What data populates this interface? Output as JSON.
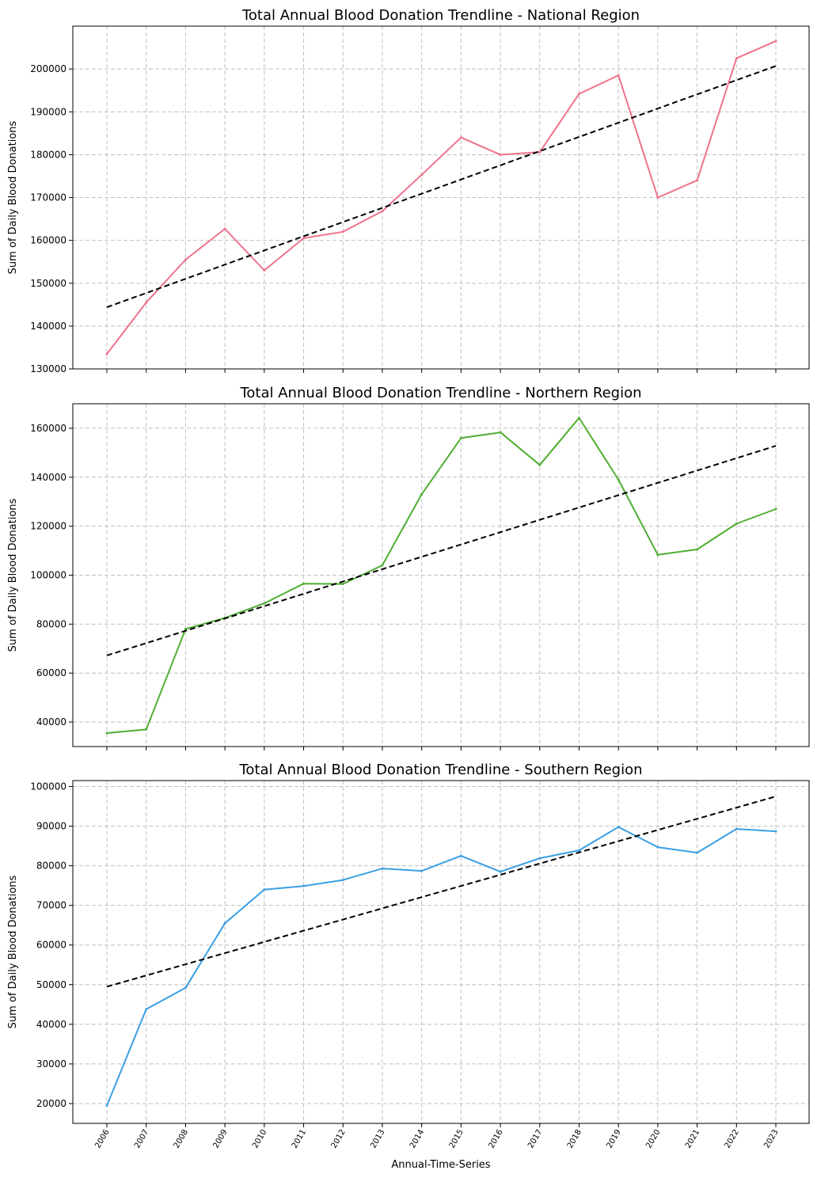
{
  "chart_data": [
    {
      "type": "line",
      "title": "Total Annual Blood Donation Trendline - National Region",
      "ylabel": "Sum of Daily Blood Donations",
      "xlabel": "",
      "x": [
        "2006",
        "2007",
        "2008",
        "2009",
        "2010",
        "2011",
        "2012",
        "2013",
        "2014",
        "2015",
        "2016",
        "2017",
        "2018",
        "2019",
        "2020",
        "2021",
        "2022",
        "2023"
      ],
      "series": [
        {
          "values": [
            133500,
            145500,
            155500,
            162700,
            153000,
            160500,
            162000,
            166800,
            175300,
            184000,
            180000,
            180600,
            194200,
            198500,
            170000,
            174000,
            202500,
            206500
          ],
          "color": "#f0728a"
        }
      ],
      "trendline": {
        "start": 144400,
        "end": 200700,
        "style": "dashed",
        "color": "#000000"
      },
      "ylim": [
        130000,
        210000
      ],
      "yticks": [
        130000,
        140000,
        150000,
        160000,
        170000,
        180000,
        190000,
        200000
      ],
      "grid": true
    },
    {
      "type": "line",
      "title": "Total Annual Blood Donation Trendline - Northern Region",
      "ylabel": "Sum of Daily Blood Donations",
      "xlabel": "",
      "x": [
        "2006",
        "2007",
        "2008",
        "2009",
        "2010",
        "2011",
        "2012",
        "2013",
        "2014",
        "2015",
        "2016",
        "2017",
        "2018",
        "2019",
        "2020",
        "2021",
        "2022",
        "2023"
      ],
      "series": [
        {
          "values": [
            35500,
            37000,
            78000,
            82500,
            88500,
            96500,
            96400,
            104000,
            133000,
            156000,
            158300,
            145000,
            164200,
            139000,
            108300,
            110500,
            121000,
            127000
          ],
          "color": "#4fae32"
        }
      ],
      "trendline": {
        "start": 67200,
        "end": 152800,
        "style": "dashed",
        "color": "#000000"
      },
      "ylim": [
        30000,
        170000
      ],
      "yticks": [
        40000,
        60000,
        80000,
        100000,
        120000,
        140000,
        160000
      ],
      "grid": true
    },
    {
      "type": "line",
      "title": "Total Annual Blood Donation Trendline - Southern Region",
      "ylabel": "Sum of Daily Blood Donations",
      "xlabel": "Annual-Time-Series",
      "x": [
        "2006",
        "2007",
        "2008",
        "2009",
        "2010",
        "2011",
        "2012",
        "2013",
        "2014",
        "2015",
        "2016",
        "2017",
        "2018",
        "2019",
        "2020",
        "2021",
        "2022",
        "2023"
      ],
      "series": [
        {
          "values": [
            19500,
            43800,
            49200,
            65500,
            74000,
            74900,
            76400,
            79300,
            78700,
            82500,
            78500,
            81900,
            83900,
            89800,
            84700,
            83300,
            89300,
            88700
          ],
          "color": "#3a9fe2"
        }
      ],
      "trendline": {
        "start": 49500,
        "end": 97500,
        "style": "dashed",
        "color": "#000000"
      },
      "ylim": [
        15000,
        101500
      ],
      "yticks": [
        20000,
        30000,
        40000,
        50000,
        60000,
        70000,
        80000,
        90000,
        100000
      ],
      "grid": true
    }
  ]
}
